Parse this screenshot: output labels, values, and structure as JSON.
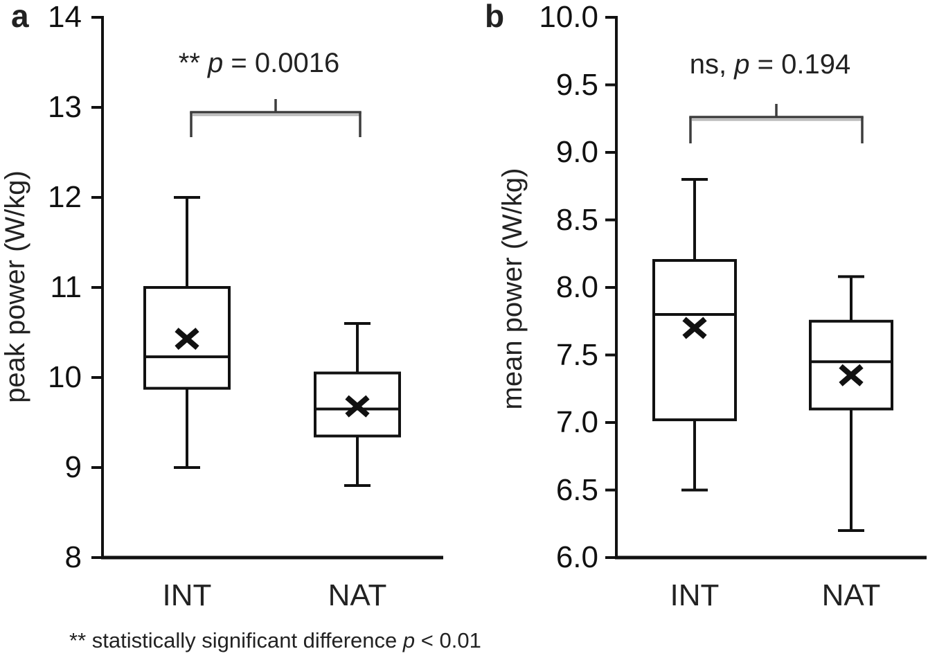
{
  "colors": {
    "axis": "#111111",
    "box_stroke": "#111111",
    "box_fill": "#ffffff",
    "mean_marker": "#111111",
    "bracket": "#3d3d3d",
    "bracket_shadow": "#b5b5b5",
    "text": "#222222"
  },
  "footer": {
    "prefix": "** statistically significant difference ",
    "p_symbol": "p",
    "suffix": " < 0.01"
  },
  "chart_data": [
    {
      "type": "boxplot",
      "panel_label": "a",
      "ylabel": "peak power (W/kg)",
      "ylim": [
        8,
        14
      ],
      "yticks": [
        14,
        13,
        12,
        11,
        10,
        9,
        8
      ],
      "ytick_labels": [
        "14",
        "13",
        "12",
        "11",
        "10",
        "9",
        "8"
      ],
      "categories": [
        "INT",
        "NAT"
      ],
      "grid": false,
      "significance": {
        "prefix": "** ",
        "p_symbol": "p",
        "suffix": " = 0.0016",
        "comparison": [
          "INT",
          "NAT"
        ]
      },
      "series": [
        {
          "name": "INT",
          "whisker_low": 9.0,
          "q1": 9.88,
          "median": 10.23,
          "mean": 10.43,
          "q3": 11.0,
          "whisker_high": 12.0
        },
        {
          "name": "NAT",
          "whisker_low": 8.8,
          "q1": 9.35,
          "median": 9.65,
          "mean": 9.68,
          "q3": 10.05,
          "whisker_high": 10.6
        }
      ]
    },
    {
      "type": "boxplot",
      "panel_label": "b",
      "ylabel": "mean power (W/kg)",
      "ylim": [
        6.0,
        10.0
      ],
      "yticks": [
        10.0,
        9.5,
        9.0,
        8.5,
        8.0,
        7.5,
        7.0,
        6.5,
        6.0
      ],
      "ytick_labels": [
        "10.0",
        "9.5",
        "9.0",
        "8.5",
        "8.0",
        "7.5",
        "7.0",
        "6.5",
        "6.0"
      ],
      "categories": [
        "INT",
        "NAT"
      ],
      "grid": false,
      "significance": {
        "prefix": "ns, ",
        "p_symbol": "p",
        "suffix": " = 0.194",
        "comparison": [
          "INT",
          "NAT"
        ]
      },
      "series": [
        {
          "name": "INT",
          "whisker_low": 6.5,
          "q1": 7.02,
          "median": 7.8,
          "mean": 7.7,
          "q3": 8.2,
          "whisker_high": 8.8
        },
        {
          "name": "NAT",
          "whisker_low": 6.2,
          "q1": 7.1,
          "median": 7.45,
          "mean": 7.35,
          "q3": 7.75,
          "whisker_high": 8.08
        }
      ]
    }
  ]
}
